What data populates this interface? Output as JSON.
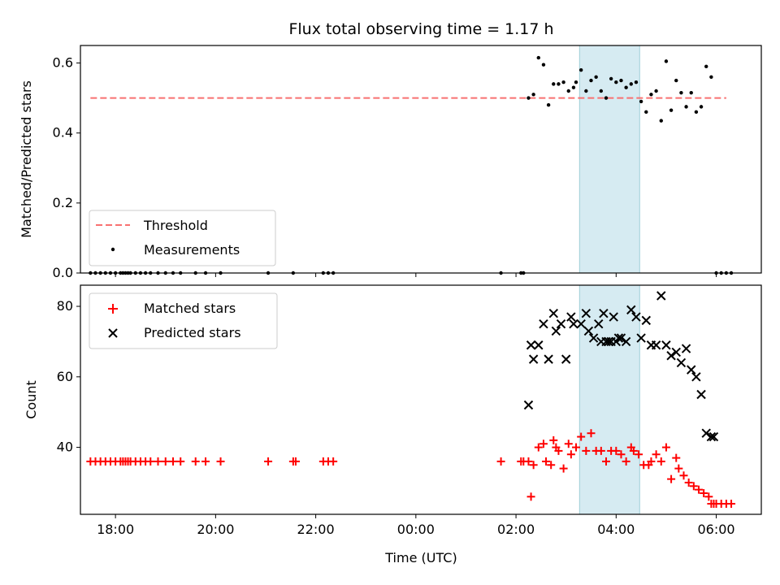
{
  "chart_data": [
    {
      "type": "scatter",
      "title": "Flux total observing time = 1.17 h",
      "xlabel": "",
      "ylabel": "Matched/Predicted stars",
      "xlim": [
        -6.7,
        6.9
      ],
      "ylim": [
        0.0,
        0.65
      ],
      "yticks": [
        "0.0",
        "0.2",
        "0.4",
        "0.6"
      ],
      "grid": false,
      "legend_position": "lower-left",
      "legend": [
        "Threshold",
        "Measurements"
      ],
      "highlight_span": [
        3.27,
        4.47
      ],
      "threshold": {
        "name": "Threshold",
        "value": 0.5,
        "x_range": [
          -6.5,
          6.2
        ],
        "color": "#f87171",
        "style": "dashed"
      },
      "series": [
        {
          "name": "Measurements",
          "marker": "dot",
          "color": "#000000",
          "x": [
            -6.5,
            -6.4,
            -6.3,
            -6.2,
            -6.1,
            -6.0,
            -5.9,
            -5.85,
            -5.8,
            -5.75,
            -5.7,
            -5.6,
            -5.5,
            -5.4,
            -5.3,
            -5.15,
            -5.0,
            -4.85,
            -4.7,
            -4.4,
            -4.2,
            -3.9,
            -2.95,
            -2.45,
            -1.85,
            -1.75,
            -1.65,
            1.7,
            2.1,
            2.15,
            2.25,
            2.35,
            2.45,
            2.55,
            2.65,
            2.75,
            2.85,
            2.95,
            3.05,
            3.15,
            3.2,
            3.3,
            3.4,
            3.5,
            3.6,
            3.7,
            3.8,
            3.9,
            4.0,
            4.1,
            4.2,
            4.3,
            4.4,
            4.5,
            4.6,
            4.7,
            4.8,
            4.9,
            5.0,
            5.1,
            5.2,
            5.3,
            5.4,
            5.5,
            5.6,
            5.7,
            5.8,
            5.9,
            6.0,
            6.1,
            6.2,
            6.3
          ],
          "y": [
            0,
            0,
            0,
            0,
            0,
            0,
            0,
            0,
            0,
            0,
            0,
            0,
            0,
            0,
            0,
            0,
            0,
            0,
            0,
            0,
            0,
            0,
            0,
            0,
            0,
            0,
            0,
            0,
            0,
            0,
            0.5,
            0.51,
            0.615,
            0.595,
            0.48,
            0.54,
            0.54,
            0.545,
            0.52,
            0.53,
            0.545,
            0.58,
            0.52,
            0.55,
            0.56,
            0.52,
            0.5,
            0.555,
            0.545,
            0.55,
            0.53,
            0.54,
            0.545,
            0.49,
            0.46,
            0.51,
            0.52,
            0.435,
            0.605,
            0.465,
            0.55,
            0.515,
            0.475,
            0.515,
            0.46,
            0.475,
            0.59,
            0.56,
            0,
            0,
            0,
            0
          ]
        }
      ]
    },
    {
      "type": "scatter",
      "title": "",
      "xlabel": "Time (UTC)",
      "ylabel": "Count",
      "xlim": [
        -6.7,
        6.9
      ],
      "ylim": [
        21,
        86
      ],
      "xticks": [
        "18:00",
        "20:00",
        "22:00",
        "00:00",
        "02:00",
        "04:00",
        "06:00"
      ],
      "xtick_values": [
        -6,
        -4,
        -2,
        0,
        2,
        4,
        6
      ],
      "yticks": [
        "40",
        "60",
        "80"
      ],
      "grid": false,
      "legend_position": "upper-left",
      "legend": [
        "Matched stars",
        "Predicted stars"
      ],
      "highlight_span": [
        3.27,
        4.47
      ],
      "series": [
        {
          "name": "Matched stars",
          "marker": "plus",
          "color": "#ff0000",
          "x": [
            -6.5,
            -6.4,
            -6.3,
            -6.2,
            -6.1,
            -6.0,
            -5.9,
            -5.85,
            -5.8,
            -5.75,
            -5.7,
            -5.6,
            -5.5,
            -5.4,
            -5.3,
            -5.15,
            -5.0,
            -4.85,
            -4.7,
            -4.4,
            -4.2,
            -3.9,
            -2.95,
            -2.45,
            -2.4,
            -1.85,
            -1.75,
            -1.65,
            1.7,
            2.1,
            2.15,
            2.25,
            2.3,
            2.35,
            2.45,
            2.55,
            2.6,
            2.7,
            2.75,
            2.8,
            2.85,
            2.95,
            3.05,
            3.1,
            3.2,
            3.3,
            3.4,
            3.5,
            3.6,
            3.7,
            3.8,
            3.9,
            4.0,
            4.1,
            4.2,
            4.3,
            4.35,
            4.45,
            4.55,
            4.65,
            4.7,
            4.8,
            4.9,
            5.0,
            5.1,
            5.2,
            5.25,
            5.35,
            5.45,
            5.55,
            5.65,
            5.75,
            5.85,
            5.9,
            5.95,
            6.0,
            6.1,
            6.2,
            6.3
          ],
          "y": [
            36,
            36,
            36,
            36,
            36,
            36,
            36,
            36,
            36,
            36,
            36,
            36,
            36,
            36,
            36,
            36,
            36,
            36,
            36,
            36,
            36,
            36,
            36,
            36,
            36,
            36,
            36,
            36,
            36,
            36,
            36,
            36,
            26,
            35,
            40,
            41,
            36,
            35,
            42,
            40,
            39,
            34,
            41,
            38,
            40,
            43,
            39,
            44,
            39,
            39,
            36,
            39,
            39,
            38,
            36,
            40,
            39,
            38,
            35,
            35,
            36,
            38,
            36,
            40,
            31,
            37,
            34,
            32,
            30,
            29,
            28,
            27,
            26,
            24,
            24,
            24,
            24,
            24,
            24
          ]
        },
        {
          "name": "Predicted stars",
          "marker": "x",
          "color": "#000000",
          "x": [
            2.25,
            2.3,
            2.35,
            2.45,
            2.55,
            2.65,
            2.75,
            2.8,
            2.9,
            3.0,
            3.1,
            3.15,
            3.3,
            3.4,
            3.45,
            3.55,
            3.65,
            3.7,
            3.75,
            3.8,
            3.85,
            3.9,
            3.95,
            4.0,
            4.05,
            4.1,
            4.2,
            4.3,
            4.4,
            4.5,
            4.6,
            4.7,
            4.8,
            4.9,
            5.0,
            5.1,
            5.2,
            5.3,
            5.4,
            5.5,
            5.6,
            5.7,
            5.8,
            5.9,
            5.95
          ],
          "y": [
            52,
            69,
            65,
            69,
            75,
            65,
            78,
            73,
            75,
            65,
            77,
            75,
            75,
            78,
            73,
            71,
            75,
            70,
            78,
            70,
            70,
            70,
            77,
            70,
            71,
            71,
            70,
            79,
            77,
            71,
            76,
            69,
            69,
            83,
            69,
            66,
            67,
            64,
            68,
            62,
            60,
            55,
            44,
            43,
            43
          ]
        }
      ]
    }
  ]
}
